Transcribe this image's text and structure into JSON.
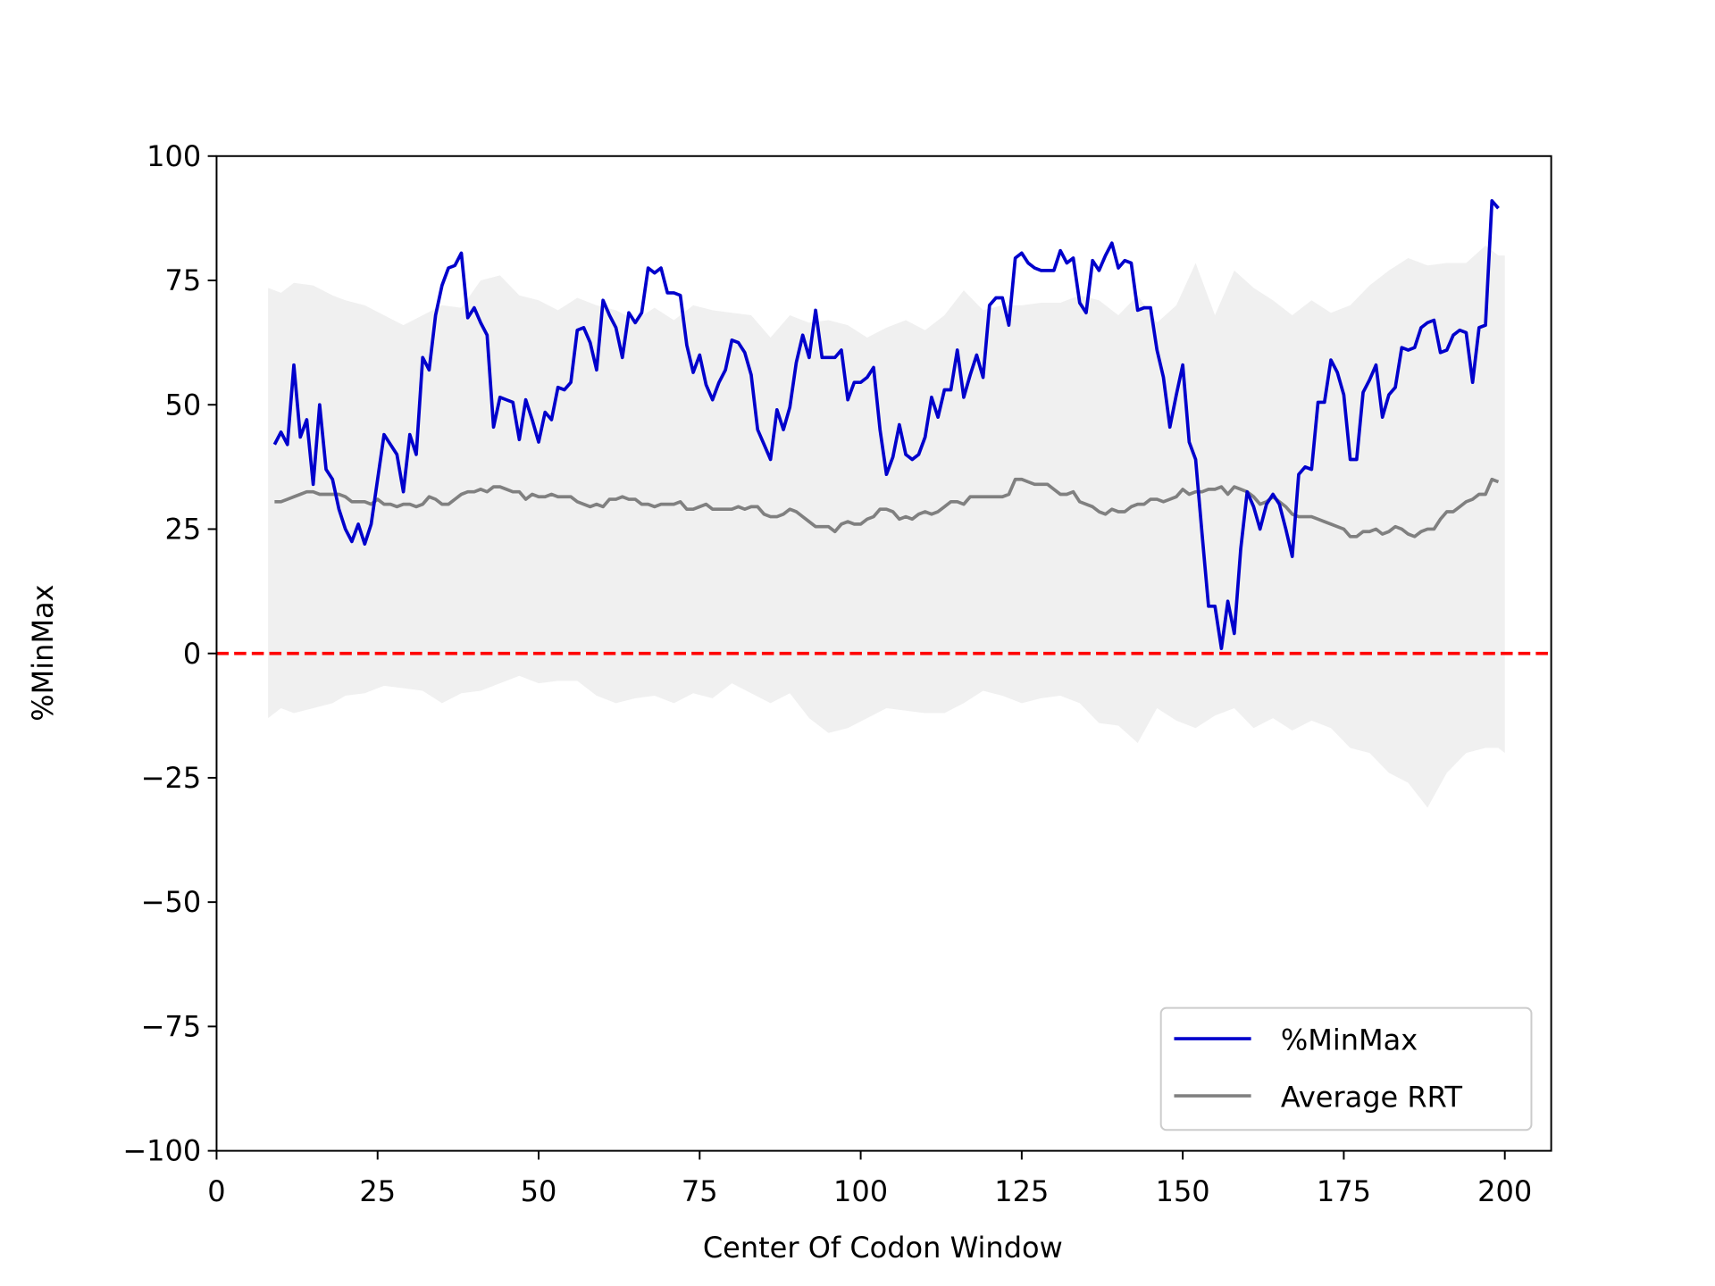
{
  "chart_data": {
    "type": "line",
    "x_label": "Center Of Codon Window",
    "y_label": "%MinMax",
    "xlim": [
      0,
      207.2
    ],
    "ylim": [
      -100,
      100
    ],
    "xticks": [
      0,
      25,
      50,
      75,
      100,
      125,
      150,
      175,
      200
    ],
    "yticks": [
      {
        "value": -100,
        "label": "−100"
      },
      {
        "value": -75,
        "label": "−75"
      },
      {
        "value": -50,
        "label": "−50"
      },
      {
        "value": -25,
        "label": "−25"
      },
      0,
      25,
      50,
      75,
      100
    ],
    "legend": "lower right",
    "hline": {
      "value": 0,
      "color": "#ff0000"
    },
    "band": {
      "color": "#f0f0f0",
      "x": [
        8,
        10,
        12,
        15,
        18,
        20,
        23,
        26,
        29,
        32,
        35,
        38,
        41,
        44,
        47,
        50,
        53,
        56,
        59,
        62,
        65,
        68,
        71,
        74,
        77,
        80,
        83,
        86,
        89,
        92,
        95,
        98,
        101,
        104,
        107,
        110,
        113,
        116,
        119,
        122,
        125,
        128,
        131,
        134,
        137,
        140,
        143,
        146,
        149,
        152,
        155,
        158,
        161,
        164,
        167,
        170,
        173,
        176,
        179,
        182,
        185,
        188,
        191,
        194,
        197,
        199,
        200
      ],
      "upper": [
        73.5,
        72.5,
        74.5,
        74,
        72,
        71,
        70,
        68,
        66,
        68,
        70,
        69.5,
        75,
        76,
        72,
        71,
        69,
        71.5,
        70,
        69,
        67,
        69.5,
        67,
        70,
        69,
        68.5,
        68,
        63.5,
        68,
        66.5,
        67,
        66,
        63.5,
        65.5,
        67,
        65,
        68,
        73,
        69,
        70,
        70,
        70.5,
        70.5,
        72,
        71,
        68,
        72,
        66.5,
        70,
        78.5,
        68,
        77,
        73.5,
        71,
        68,
        71,
        68.5,
        70,
        74,
        77,
        79.5,
        78,
        78.5,
        78.5,
        82,
        80,
        80
      ],
      "lower": [
        -13,
        -11,
        -12,
        -11,
        -10,
        -8.5,
        -8,
        -6.5,
        -7,
        -7.5,
        -10,
        -8,
        -7.5,
        -6,
        -4.5,
        -6,
        -5.5,
        -5.5,
        -8.5,
        -10,
        -9,
        -8.5,
        -10,
        -8,
        -9,
        -6,
        -8,
        -10,
        -8,
        -13,
        -16,
        -15,
        -13,
        -11,
        -11.5,
        -12,
        -12,
        -10,
        -7.5,
        -8.5,
        -10,
        -9,
        -8.5,
        -10,
        -14,
        -14.5,
        -18,
        -11,
        -13.5,
        -15,
        -12.5,
        -11,
        -15,
        -13,
        -15.5,
        -13.5,
        -15,
        -19,
        -20,
        -24,
        -26,
        -31,
        -24,
        -20,
        -19,
        -19,
        -20
      ]
    },
    "x": [
      9,
      10,
      11,
      12,
      13,
      14,
      15,
      16,
      17,
      18,
      19,
      20,
      21,
      22,
      23,
      24,
      25,
      26,
      27,
      28,
      29,
      30,
      31,
      32,
      33,
      34,
      35,
      36,
      37,
      38,
      39,
      40,
      41,
      42,
      43,
      44,
      45,
      46,
      47,
      48,
      49,
      50,
      51,
      52,
      53,
      54,
      55,
      56,
      57,
      58,
      59,
      60,
      61,
      62,
      63,
      64,
      65,
      66,
      67,
      68,
      69,
      70,
      71,
      72,
      73,
      74,
      75,
      76,
      77,
      78,
      79,
      80,
      81,
      82,
      83,
      84,
      85,
      86,
      87,
      88,
      89,
      90,
      91,
      92,
      93,
      94,
      95,
      96,
      97,
      98,
      99,
      100,
      101,
      102,
      103,
      104,
      105,
      106,
      107,
      108,
      109,
      110,
      111,
      112,
      113,
      114,
      115,
      116,
      117,
      118,
      119,
      120,
      121,
      122,
      123,
      124,
      125,
      126,
      127,
      128,
      129,
      130,
      131,
      132,
      133,
      134,
      135,
      136,
      137,
      138,
      139,
      140,
      141,
      142,
      143,
      144,
      145,
      146,
      147,
      148,
      149,
      150,
      151,
      152,
      153,
      154,
      155,
      156,
      157,
      158,
      159,
      160,
      161,
      162,
      163,
      164,
      165,
      166,
      167,
      168,
      169,
      170,
      171,
      172,
      173,
      174,
      175,
      176,
      177,
      178,
      179,
      180,
      181,
      182,
      183,
      184,
      185,
      186,
      187,
      188,
      189,
      190,
      191,
      192,
      193,
      194,
      195,
      196,
      197,
      198,
      199
    ],
    "series": [
      {
        "name": "%MinMax",
        "color": "#0000cc",
        "values": [
          42,
          44.5,
          42,
          58,
          43.5,
          47,
          34,
          50,
          37,
          35,
          29,
          25,
          22.5,
          26,
          22,
          26,
          35,
          44,
          42,
          40,
          32.5,
          44,
          40,
          59.5,
          57,
          68,
          74,
          77.5,
          78,
          80.5,
          67.5,
          69.5,
          66.5,
          64,
          45.5,
          51.5,
          51,
          50.5,
          43,
          51,
          47,
          42.5,
          48.5,
          47,
          53.5,
          53,
          54.5,
          65,
          65.5,
          62.5,
          57,
          71,
          68,
          65.5,
          59.5,
          68.5,
          66.5,
          68.5,
          77.5,
          76.5,
          77.5,
          72.5,
          72.5,
          72,
          62,
          56.5,
          60,
          54,
          51,
          54.5,
          57,
          63,
          62.5,
          60.5,
          56,
          45,
          42,
          39,
          49,
          45,
          49.5,
          58.5,
          64,
          59.5,
          69,
          59.5,
          59.5,
          59.5,
          61,
          51,
          54.5,
          54.5,
          55.5,
          57.5,
          45,
          36,
          39.5,
          46,
          40,
          39,
          40,
          43.5,
          51.5,
          47.5,
          53,
          53,
          61,
          51.5,
          56,
          60,
          55.5,
          70,
          71.5,
          71.5,
          66,
          79.5,
          80.5,
          78.5,
          77.5,
          77,
          77,
          77,
          81,
          78.5,
          79.5,
          70.5,
          68.5,
          79,
          77,
          80,
          82.5,
          77.5,
          79,
          78.5,
          69,
          69.5,
          69.5,
          61,
          55.5,
          45.5,
          52,
          58,
          42.5,
          39,
          24,
          9.5,
          9.5,
          1,
          10.5,
          4,
          21,
          32.5,
          29.5,
          25,
          30,
          32,
          30,
          25,
          19.5,
          36,
          37.5,
          37,
          50.5,
          50.5,
          59,
          56.5,
          52,
          39,
          39,
          52.5,
          55,
          58,
          47.5,
          52,
          53.5,
          61.5,
          61,
          61.5,
          65.5,
          66.5,
          67,
          60.5,
          61,
          64,
          65,
          64.5,
          54.5,
          65.5,
          66,
          91,
          89.5
        ]
      },
      {
        "name": "Average RRT",
        "color": "#808080",
        "values": [
          30.5,
          30.5,
          31,
          31.5,
          32,
          32.5,
          32.5,
          32,
          32,
          32,
          32,
          31.5,
          30.5,
          30.5,
          30.5,
          30,
          31,
          30,
          30,
          29.5,
          30,
          30,
          29.5,
          30,
          31.5,
          31,
          30,
          30,
          31,
          32,
          32.5,
          32.5,
          33,
          32.5,
          33.5,
          33.5,
          33,
          32.5,
          32.5,
          31,
          32,
          31.5,
          31.5,
          32,
          31.5,
          31.5,
          31.5,
          30.5,
          30,
          29.5,
          30,
          29.5,
          31,
          31,
          31.5,
          31,
          31,
          30,
          30,
          29.5,
          30,
          30,
          30,
          30.5,
          29,
          29,
          29.5,
          30,
          29,
          29,
          29,
          29,
          29.5,
          29,
          29.5,
          29.5,
          28,
          27.5,
          27.5,
          28,
          29,
          28.5,
          27.5,
          26.5,
          25.5,
          25.5,
          25.5,
          24.5,
          26,
          26.5,
          26,
          26,
          27,
          27.5,
          29,
          29,
          28.5,
          27,
          27.5,
          27,
          28,
          28.5,
          28,
          28.5,
          29.5,
          30.5,
          30.5,
          30,
          31.5,
          31.5,
          31.5,
          31.5,
          31.5,
          31.5,
          32,
          35,
          35,
          34.5,
          34,
          34,
          34,
          33,
          32,
          32,
          32.5,
          30.5,
          30,
          29.5,
          28.5,
          28,
          29,
          28.5,
          28.5,
          29.5,
          30,
          30,
          31,
          31,
          30.5,
          31,
          31.5,
          33,
          32,
          32.5,
          32.5,
          33,
          33,
          33.5,
          32,
          33.5,
          33,
          32.5,
          31.5,
          30,
          30.5,
          31.5,
          30.5,
          29.5,
          28,
          27.5,
          27.5,
          27.5,
          27,
          26.5,
          26,
          25.5,
          25,
          23.5,
          23.5,
          24.5,
          24.5,
          25,
          24,
          24.5,
          25.5,
          25,
          24,
          23.5,
          24.5,
          25,
          25,
          27,
          28.5,
          28.5,
          29.5,
          30.5,
          31,
          32,
          32,
          35,
          34.5
        ]
      }
    ]
  }
}
